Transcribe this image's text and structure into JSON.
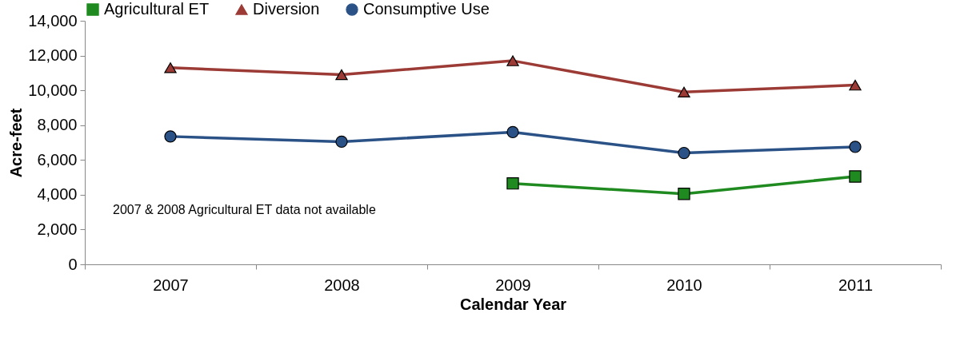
{
  "chart_data": {
    "type": "line",
    "xlabel": "Calendar Year",
    "ylabel": "Acre-feet",
    "categories": [
      "2007",
      "2008",
      "2009",
      "2010",
      "2011"
    ],
    "series": [
      {
        "name": "Agricultural ET",
        "color": "#1f8a1f",
        "marker": "square",
        "values": [
          null,
          null,
          4650,
          4050,
          5050
        ]
      },
      {
        "name": "Diversion",
        "color": "#9c3b36",
        "marker": "triangle",
        "values": [
          11300,
          10900,
          11700,
          9900,
          10300
        ]
      },
      {
        "name": "Consumptive Use",
        "color": "#2b5287",
        "marker": "circle",
        "values": [
          7350,
          7050,
          7600,
          6400,
          6750
        ]
      }
    ],
    "ylim": [
      0,
      14000
    ],
    "yticks": [
      0,
      {
        "value": 2000,
        "label": "2,000"
      },
      {
        "value": 4000,
        "label": "4,000"
      },
      {
        "value": 6000,
        "label": "6,000"
      },
      {
        "value": 8000,
        "label": "8,000"
      },
      {
        "value": 10000,
        "label": "10,000"
      },
      {
        "value": 12000,
        "label": "12,000"
      },
      {
        "value": 14000,
        "label": "14,000"
      }
    ],
    "grid": false,
    "legend": "top",
    "annotations": [
      "2007 & 2008 Agricultural ET data not available"
    ]
  }
}
